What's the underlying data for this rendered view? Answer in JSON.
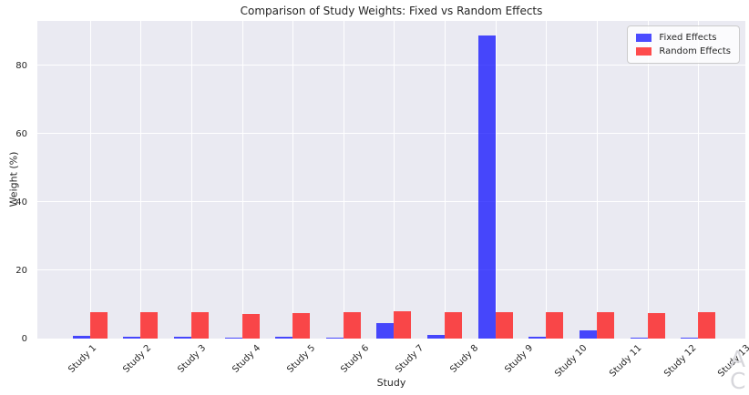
{
  "figure": {
    "watermark": {
      "line1": "A",
      "line2": "C"
    }
  },
  "chart_data": {
    "type": "bar",
    "title": "Comparison of Study Weights: Fixed vs Random Effects",
    "xlabel": "Study",
    "ylabel": "Weight (%)",
    "categories": [
      "Study 1",
      "Study 2",
      "Study 3",
      "Study 4",
      "Study 5",
      "Study 6",
      "Study 7",
      "Study 8",
      "Study 9",
      "Study 10",
      "Study 11",
      "Study 12",
      "Study 13"
    ],
    "series": [
      {
        "name": "Fixed Effects",
        "color": "#0000FF",
        "alpha": 0.7,
        "values": [
          0.8,
          0.6,
          0.5,
          0.2,
          0.5,
          0.4,
          4.5,
          1.2,
          88.7,
          0.5,
          2.3,
          0.3,
          0.4
        ]
      },
      {
        "name": "Random Effects",
        "color": "#FF0000",
        "alpha": 0.7,
        "values": [
          7.8,
          7.8,
          7.6,
          7.3,
          7.5,
          7.6,
          7.9,
          7.7,
          7.8,
          7.7,
          7.8,
          7.5,
          7.7
        ]
      }
    ],
    "ylim": [
      0,
      93
    ],
    "yticks": [
      0,
      20,
      40,
      60,
      80
    ],
    "grid": true,
    "legend_position": "upper right",
    "plot_background": "#EAEAF2",
    "grid_color": "#FFFFFF",
    "text_color": "#262626"
  }
}
